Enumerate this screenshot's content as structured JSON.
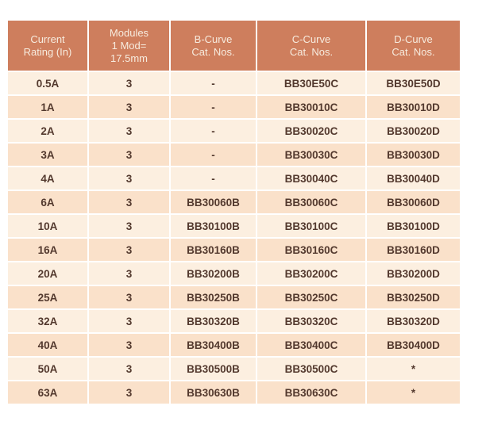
{
  "colors": {
    "header_bg": "#CE7E5D",
    "header_text": "#F7ECDF",
    "row_light": "#FCEFE0",
    "row_dark": "#FAE1CA",
    "cell_text": "#53392E",
    "page_bg": "#FFFFFF",
    "grid_line": "#FFFFFF"
  },
  "table": {
    "description": "MCB catalogue numbers by current rating and trip curve",
    "columns": [
      {
        "id": "current_rating",
        "label_lines": [
          "Current",
          "Rating (In)"
        ]
      },
      {
        "id": "modules",
        "label_lines": [
          "Modules",
          "1 Mod=",
          "17.5mm"
        ]
      },
      {
        "id": "b_curve",
        "label_lines": [
          "B-Curve",
          "Cat. Nos."
        ]
      },
      {
        "id": "c_curve",
        "label_lines": [
          "C-Curve",
          "Cat. Nos."
        ]
      },
      {
        "id": "d_curve",
        "label_lines": [
          "D-Curve",
          "Cat. Nos."
        ]
      }
    ],
    "rows": [
      [
        "0.5A",
        "3",
        "-",
        "BB30E50C",
        "BB30E50D"
      ],
      [
        "1A",
        "3",
        "-",
        "BB30010C",
        "BB30010D"
      ],
      [
        "2A",
        "3",
        "-",
        "BB30020C",
        "BB30020D"
      ],
      [
        "3A",
        "3",
        "-",
        "BB30030C",
        "BB30030D"
      ],
      [
        "4A",
        "3",
        "-",
        "BB30040C",
        "BB30040D"
      ],
      [
        "6A",
        "3",
        "BB30060B",
        "BB30060C",
        "BB30060D"
      ],
      [
        "10A",
        "3",
        "BB30100B",
        "BB30100C",
        "BB30100D"
      ],
      [
        "16A",
        "3",
        "BB30160B",
        "BB30160C",
        "BB30160D"
      ],
      [
        "20A",
        "3",
        "BB30200B",
        "BB30200C",
        "BB30200D"
      ],
      [
        "25A",
        "3",
        "BB30250B",
        "BB30250C",
        "BB30250D"
      ],
      [
        "32A",
        "3",
        "BB30320B",
        "BB30320C",
        "BB30320D"
      ],
      [
        "40A",
        "3",
        "BB30400B",
        "BB30400C",
        "BB30400D"
      ],
      [
        "50A",
        "3",
        "BB30500B",
        "BB30500C",
        "*"
      ],
      [
        "63A",
        "3",
        "BB30630B",
        "BB30630C",
        "*"
      ]
    ]
  }
}
